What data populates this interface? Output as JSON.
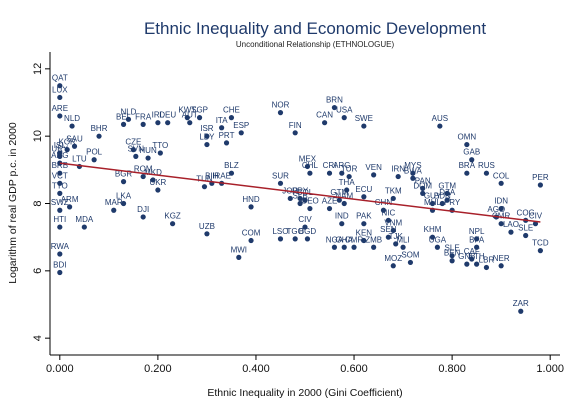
{
  "chart_data": {
    "type": "scatter",
    "title": "Ethnic Inequality and Economic Development",
    "subtitle": "Unconditional Relationship (ETHNOLOGUE)",
    "xlabel": "Ethnic Inequality in 2000 (Gini Coefficient)",
    "ylabel": "Logarithm of real GDP p.c. in 2000",
    "xlim": [
      -0.02,
      1.02
    ],
    "ylim": [
      3.5,
      12.5
    ],
    "x_ticks": [
      0,
      0.2,
      0.4,
      0.6,
      0.8,
      1.0
    ],
    "x_tick_labels": [
      "0.000",
      "0.200",
      "0.400",
      "0.600",
      "0.800",
      "1.000"
    ],
    "y_ticks": [
      4,
      6,
      8,
      10,
      12
    ],
    "y_tick_labels": [
      "4",
      "6",
      "8",
      "10",
      "12"
    ],
    "grid": false,
    "fit_line": {
      "x": [
        0.0,
        0.98
      ],
      "y": [
        9.2,
        7.45
      ]
    },
    "points": [
      {
        "label": "QAT",
        "x": 0.0,
        "y": 11.5
      },
      {
        "label": "LUX",
        "x": 0.0,
        "y": 11.15
      },
      {
        "label": "ARE",
        "x": 0.0,
        "y": 10.6
      },
      {
        "label": "NLD",
        "x": 0.025,
        "y": 10.3
      },
      {
        "label": "BHR",
        "x": 0.08,
        "y": 10.0
      },
      {
        "label": "SAU",
        "x": 0.03,
        "y": 9.7
      },
      {
        "label": "ISL",
        "x": 0.0,
        "y": 9.5
      },
      {
        "label": "KOR",
        "x": 0.015,
        "y": 9.6
      },
      {
        "label": "LTU",
        "x": 0.04,
        "y": 9.1
      },
      {
        "label": "POL",
        "x": 0.07,
        "y": 9.3
      },
      {
        "label": "URY",
        "x": 0.0,
        "y": 9.4
      },
      {
        "label": "ARG",
        "x": 0.0,
        "y": 9.2
      },
      {
        "label": "BRB",
        "x": 0.0,
        "y": 8.9
      },
      {
        "label": "VCT",
        "x": 0.0,
        "y": 8.6
      },
      {
        "label": "TTO",
        "x": 0.0,
        "y": 8.3
      },
      {
        "label": "SWZ",
        "x": 0.0,
        "y": 7.8
      },
      {
        "label": "ARM",
        "x": 0.02,
        "y": 7.9
      },
      {
        "label": "HTI",
        "x": 0.0,
        "y": 7.3
      },
      {
        "label": "MDA",
        "x": 0.05,
        "y": 7.3
      },
      {
        "label": "RWA",
        "x": 0.0,
        "y": 6.5
      },
      {
        "label": "BDI",
        "x": 0.0,
        "y": 5.95
      },
      {
        "label": "NLD",
        "x": 0.14,
        "y": 10.5
      },
      {
        "label": "BEL",
        "x": 0.13,
        "y": 10.35
      },
      {
        "label": "FRA",
        "x": 0.17,
        "y": 10.35
      },
      {
        "label": "IRL",
        "x": 0.2,
        "y": 10.4
      },
      {
        "label": "DEU",
        "x": 0.22,
        "y": 10.4
      },
      {
        "label": "KWT",
        "x": 0.26,
        "y": 10.55
      },
      {
        "label": "SGP",
        "x": 0.285,
        "y": 10.55
      },
      {
        "label": "AUT",
        "x": 0.265,
        "y": 10.4
      },
      {
        "label": "CZE",
        "x": 0.15,
        "y": 9.6
      },
      {
        "label": "SVN",
        "x": 0.155,
        "y": 9.4
      },
      {
        "label": "HUN",
        "x": 0.18,
        "y": 9.35
      },
      {
        "label": "TTO",
        "x": 0.205,
        "y": 9.5
      },
      {
        "label": "ITA",
        "x": 0.33,
        "y": 10.25
      },
      {
        "label": "ISR",
        "x": 0.3,
        "y": 10.0
      },
      {
        "label": "LBY",
        "x": 0.3,
        "y": 9.75
      },
      {
        "label": "PRT",
        "x": 0.34,
        "y": 9.8
      },
      {
        "label": "ROM",
        "x": 0.17,
        "y": 8.8
      },
      {
        "label": "BGR",
        "x": 0.13,
        "y": 8.65
      },
      {
        "label": "MKD",
        "x": 0.19,
        "y": 8.7
      },
      {
        "label": "TUN",
        "x": 0.295,
        "y": 8.5
      },
      {
        "label": "BIH",
        "x": 0.31,
        "y": 8.6
      },
      {
        "label": "IRAE",
        "x": 0.33,
        "y": 8.6
      },
      {
        "label": "UKR",
        "x": 0.2,
        "y": 8.4
      },
      {
        "label": "LKA",
        "x": 0.13,
        "y": 8.0
      },
      {
        "label": "MAR",
        "x": 0.11,
        "y": 7.8
      },
      {
        "label": "DJI",
        "x": 0.17,
        "y": 7.6
      },
      {
        "label": "KGZ",
        "x": 0.23,
        "y": 7.4
      },
      {
        "label": "UZB",
        "x": 0.3,
        "y": 7.1
      },
      {
        "label": "CHE",
        "x": 0.35,
        "y": 10.55
      },
      {
        "label": "ESP",
        "x": 0.37,
        "y": 10.1
      },
      {
        "label": "BLZ",
        "x": 0.35,
        "y": 8.9
      },
      {
        "label": "HND",
        "x": 0.39,
        "y": 7.9
      },
      {
        "label": "COM",
        "x": 0.39,
        "y": 6.9
      },
      {
        "label": "MWI",
        "x": 0.365,
        "y": 6.4
      },
      {
        "label": "NOR",
        "x": 0.45,
        "y": 10.7
      },
      {
        "label": "FIN",
        "x": 0.48,
        "y": 10.1
      },
      {
        "label": "BRN",
        "x": 0.56,
        "y": 10.85
      },
      {
        "label": "USA",
        "x": 0.58,
        "y": 10.55
      },
      {
        "label": "CAN",
        "x": 0.54,
        "y": 10.4
      },
      {
        "label": "SWE",
        "x": 0.62,
        "y": 10.3
      },
      {
        "label": "AUS",
        "x": 0.775,
        "y": 10.3
      },
      {
        "label": "SUR",
        "x": 0.45,
        "y": 8.6
      },
      {
        "label": "MEX",
        "x": 0.505,
        "y": 9.1
      },
      {
        "label": "CHL",
        "x": 0.51,
        "y": 8.9
      },
      {
        "label": "CRI",
        "x": 0.55,
        "y": 8.9
      },
      {
        "label": "ARG",
        "x": 0.575,
        "y": 8.9
      },
      {
        "label": "TUR",
        "x": 0.59,
        "y": 8.8
      },
      {
        "label": "VEN",
        "x": 0.64,
        "y": 8.85
      },
      {
        "label": "IRN",
        "x": 0.69,
        "y": 8.8
      },
      {
        "label": "MYS",
        "x": 0.72,
        "y": 8.9
      },
      {
        "label": "BWA",
        "x": 0.72,
        "y": 8.75
      },
      {
        "label": "THA",
        "x": 0.585,
        "y": 8.4
      },
      {
        "label": "ECU",
        "x": 0.62,
        "y": 8.2
      },
      {
        "label": "TKM",
        "x": 0.68,
        "y": 8.15
      },
      {
        "label": "GTM",
        "x": 0.57,
        "y": 8.1
      },
      {
        "label": "NAM",
        "x": 0.58,
        "y": 8.0
      },
      {
        "label": "JOR",
        "x": 0.47,
        "y": 8.15
      },
      {
        "label": "PRY",
        "x": 0.49,
        "y": 8.15
      },
      {
        "label": "COL",
        "x": 0.5,
        "y": 8.1
      },
      {
        "label": "SLB",
        "x": 0.49,
        "y": 8.0
      },
      {
        "label": "GEO",
        "x": 0.51,
        "y": 7.85
      },
      {
        "label": "AZE",
        "x": 0.55,
        "y": 7.85
      },
      {
        "label": "CHN",
        "x": 0.66,
        "y": 7.8
      },
      {
        "label": "NIC",
        "x": 0.67,
        "y": 7.5
      },
      {
        "label": "VNM",
        "x": 0.68,
        "y": 7.2
      },
      {
        "label": "IND",
        "x": 0.575,
        "y": 7.4
      },
      {
        "label": "PAK",
        "x": 0.62,
        "y": 7.4
      },
      {
        "label": "CIV",
        "x": 0.5,
        "y": 7.3
      },
      {
        "label": "SEN",
        "x": 0.67,
        "y": 7.0
      },
      {
        "label": "KEN",
        "x": 0.62,
        "y": 6.9
      },
      {
        "label": "TJK",
        "x": 0.685,
        "y": 6.8
      },
      {
        "label": "BGD",
        "x": 0.505,
        "y": 6.95
      },
      {
        "label": "LSO",
        "x": 0.45,
        "y": 6.95
      },
      {
        "label": "TGO",
        "x": 0.48,
        "y": 6.95
      },
      {
        "label": "NGA",
        "x": 0.56,
        "y": 6.7
      },
      {
        "label": "GHA",
        "x": 0.58,
        "y": 6.7
      },
      {
        "label": "CMR",
        "x": 0.6,
        "y": 6.7
      },
      {
        "label": "ZMB",
        "x": 0.64,
        "y": 6.7
      },
      {
        "label": "MLI",
        "x": 0.7,
        "y": 6.7
      },
      {
        "label": "MOZ",
        "x": 0.68,
        "y": 6.15
      },
      {
        "label": "SOM",
        "x": 0.715,
        "y": 6.25
      },
      {
        "label": "PAN",
        "x": 0.74,
        "y": 8.45
      },
      {
        "label": "GAB",
        "x": 0.84,
        "y": 9.3
      },
      {
        "label": "OMN",
        "x": 0.83,
        "y": 9.75
      },
      {
        "label": "BRA",
        "x": 0.83,
        "y": 8.9
      },
      {
        "label": "RUS",
        "x": 0.87,
        "y": 8.9
      },
      {
        "label": "DOM",
        "x": 0.74,
        "y": 8.3
      },
      {
        "label": "GTM",
        "x": 0.79,
        "y": 8.3
      },
      {
        "label": "PER",
        "x": 0.98,
        "y": 8.55
      },
      {
        "label": "COL",
        "x": 0.9,
        "y": 8.6
      },
      {
        "label": "GUY",
        "x": 0.76,
        "y": 8.0
      },
      {
        "label": "DZA",
        "x": 0.79,
        "y": 8.1
      },
      {
        "label": "PRY",
        "x": 0.8,
        "y": 7.8
      },
      {
        "label": "BDN",
        "x": 0.78,
        "y": 8.0
      },
      {
        "label": "MHL",
        "x": 0.76,
        "y": 7.8
      },
      {
        "label": "IDN",
        "x": 0.9,
        "y": 7.85
      },
      {
        "label": "AGO",
        "x": 0.89,
        "y": 7.6
      },
      {
        "label": "CMR",
        "x": 0.9,
        "y": 7.4
      },
      {
        "label": "COG",
        "x": 0.95,
        "y": 7.5
      },
      {
        "label": "CIV",
        "x": 0.97,
        "y": 7.4
      },
      {
        "label": "LAO",
        "x": 0.92,
        "y": 7.15
      },
      {
        "label": "SLE",
        "x": 0.95,
        "y": 7.05
      },
      {
        "label": "NPL",
        "x": 0.85,
        "y": 6.95
      },
      {
        "label": "KHM",
        "x": 0.76,
        "y": 7.0
      },
      {
        "label": "UGA",
        "x": 0.77,
        "y": 6.7
      },
      {
        "label": "BFA",
        "x": 0.85,
        "y": 6.7
      },
      {
        "label": "TCD",
        "x": 0.98,
        "y": 6.6
      },
      {
        "label": "CAF",
        "x": 0.84,
        "y": 6.35
      },
      {
        "label": "SLE",
        "x": 0.8,
        "y": 6.45
      },
      {
        "label": "ETH",
        "x": 0.85,
        "y": 6.2
      },
      {
        "label": "BEN",
        "x": 0.8,
        "y": 6.3
      },
      {
        "label": "GNB",
        "x": 0.83,
        "y": 6.2
      },
      {
        "label": "LBR",
        "x": 0.87,
        "y": 6.1
      },
      {
        "label": "NER",
        "x": 0.9,
        "y": 6.15
      },
      {
        "label": "ZAR",
        "x": 0.94,
        "y": 4.8
      }
    ]
  }
}
